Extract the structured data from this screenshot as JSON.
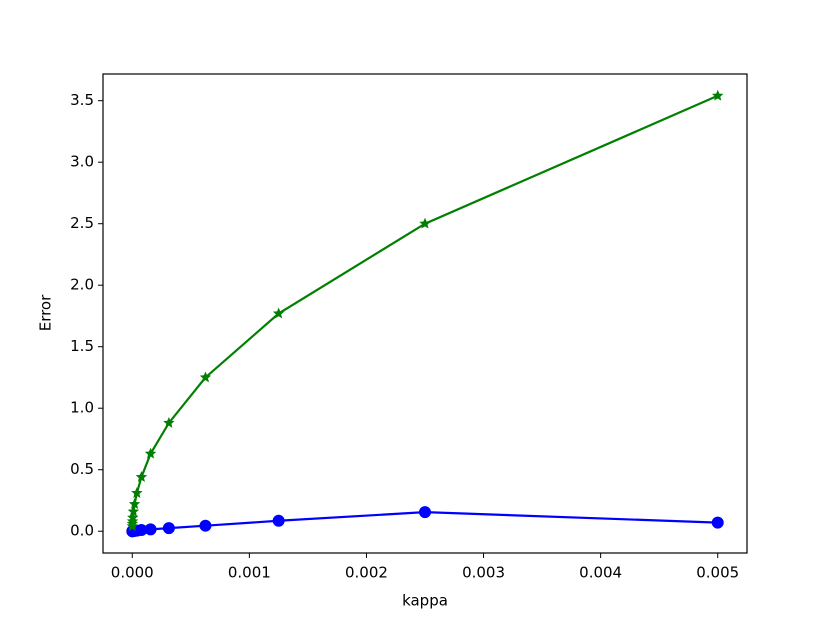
{
  "chart_data": {
    "type": "line",
    "x_label": "kappa",
    "y_label": "Error",
    "x": [
      0.005,
      0.0025,
      0.00125,
      0.000625,
      0.0003125,
      0.00015625,
      7.8125e-05,
      3.90625e-05,
      1.953125e-05,
      9.765625e-06,
      4.8828125e-06,
      2.44140625e-06,
      1.220703125e-06,
      6.103515625e-07
    ],
    "series": [
      {
        "color": "#0000ff",
        "marker": "circle",
        "values": [
          0.07,
          0.155,
          0.085,
          0.045,
          0.025,
          0.015,
          0.01,
          0.005,
          0.003,
          0.002,
          0.001,
          0.001,
          0,
          0
        ]
      },
      {
        "color": "#008000",
        "marker": "star",
        "values": [
          3.54,
          2.5,
          1.77,
          1.25,
          0.88,
          0.63,
          0.44,
          0.31,
          0.22,
          0.16,
          0.11,
          0.08,
          0.06,
          0.04
        ]
      }
    ],
    "xlim": [
      -0.00025,
      0.00525
    ],
    "xticks": [
      {
        "value": 0,
        "label": "0.000"
      },
      {
        "value": 0.001,
        "label": "0.001"
      },
      {
        "value": 0.002,
        "label": "0.002"
      },
      {
        "value": 0.003,
        "label": "0.003"
      },
      {
        "value": 0.004,
        "label": "0.004"
      },
      {
        "value": 0.005,
        "label": "0.005"
      }
    ],
    "ylim": [
      -0.177,
      3.717
    ],
    "yticks": [
      {
        "value": 0,
        "label": "0.0"
      },
      {
        "value": 0.5,
        "label": "0.5"
      },
      {
        "value": 1,
        "label": "1.0"
      },
      {
        "value": 1.5,
        "label": "1.5"
      },
      {
        "value": 2,
        "label": "2.0"
      },
      {
        "value": 2.5,
        "label": "2.5"
      },
      {
        "value": 3,
        "label": "3.0"
      },
      {
        "value": 3.5,
        "label": "3.5"
      }
    ]
  }
}
